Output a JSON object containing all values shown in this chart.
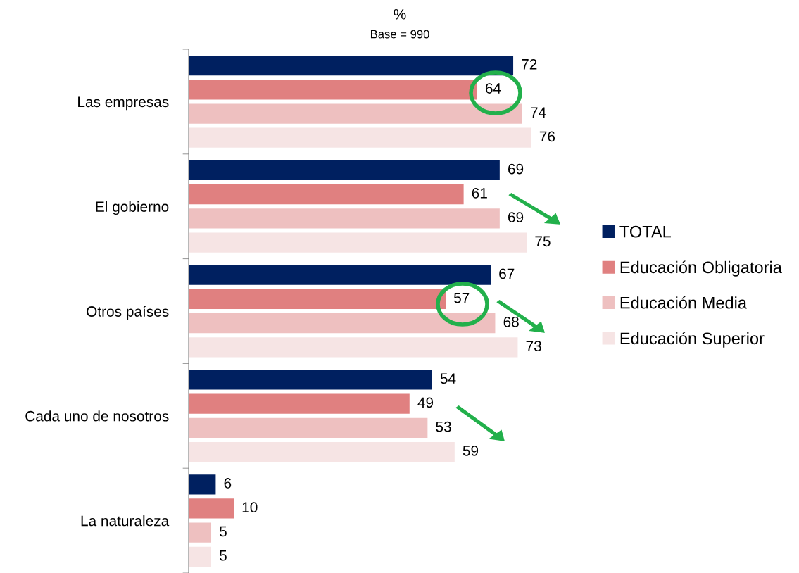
{
  "chart_data": {
    "type": "bar",
    "orientation": "horizontal",
    "title": "%",
    "subtitle": "Base = 990",
    "categories": [
      "Las empresas",
      "El gobierno",
      "Otros países",
      "Cada uno de nosotros",
      "La naturaleza"
    ],
    "series": [
      {
        "name": "TOTAL",
        "color": "#002060",
        "values": [
          72,
          69,
          67,
          54,
          6
        ]
      },
      {
        "name": "Educación Obligatoria",
        "color": "#e08080",
        "values": [
          64,
          61,
          57,
          49,
          10
        ]
      },
      {
        "name": "Educación Media",
        "color": "#eec0c0",
        "values": [
          74,
          69,
          68,
          53,
          5
        ]
      },
      {
        "name": "Educación Superior",
        "color": "#f6e4e4",
        "values": [
          76,
          75,
          73,
          59,
          5
        ]
      }
    ],
    "data_labels": true,
    "legend": "right",
    "grid": false
  }
}
